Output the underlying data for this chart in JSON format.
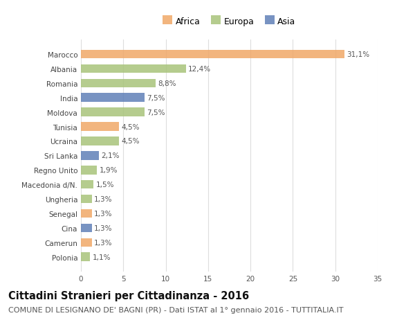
{
  "countries": [
    "Polonia",
    "Camerun",
    "Cina",
    "Senegal",
    "Ungheria",
    "Macedonia d/N.",
    "Regno Unito",
    "Sri Lanka",
    "Ucraina",
    "Tunisia",
    "Moldova",
    "India",
    "Romania",
    "Albania",
    "Marocco"
  ],
  "values": [
    1.1,
    1.3,
    1.3,
    1.3,
    1.3,
    1.5,
    1.9,
    2.1,
    4.5,
    4.5,
    7.5,
    7.5,
    8.8,
    12.4,
    31.1
  ],
  "labels": [
    "1,1%",
    "1,3%",
    "1,3%",
    "1,3%",
    "1,3%",
    "1,5%",
    "1,9%",
    "2,1%",
    "4,5%",
    "4,5%",
    "7,5%",
    "7,5%",
    "8,8%",
    "12,4%",
    "31,1%"
  ],
  "colors": [
    "#a8c47a",
    "#f0a868",
    "#6080b8",
    "#f0a868",
    "#a8c47a",
    "#a8c47a",
    "#a8c47a",
    "#6080b8",
    "#a8c47a",
    "#f0a868",
    "#a8c47a",
    "#6080b8",
    "#a8c47a",
    "#a8c47a",
    "#f0a868"
  ],
  "legend_labels": [
    "Africa",
    "Europa",
    "Asia"
  ],
  "legend_colors": [
    "#f0a868",
    "#a8c47a",
    "#6080b8"
  ],
  "title": "Cittadini Stranieri per Cittadinanza - 2016",
  "subtitle": "COMUNE DI LESIGNANO DE' BAGNI (PR) - Dati ISTAT al 1° gennaio 2016 - TUTTITALIA.IT",
  "xlim": [
    0,
    35
  ],
  "xticks": [
    0,
    5,
    10,
    15,
    20,
    25,
    30,
    35
  ],
  "background_color": "#ffffff",
  "grid_color": "#dddddd",
  "bar_height": 0.6,
  "title_fontsize": 10.5,
  "subtitle_fontsize": 8,
  "label_fontsize": 7.5,
  "tick_fontsize": 7.5,
  "legend_fontsize": 9
}
